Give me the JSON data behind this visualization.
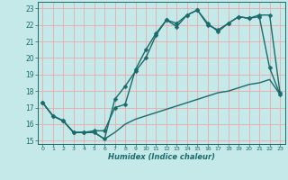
{
  "xlabel": "Humidex (Indice chaleur)",
  "xlim": [
    -0.5,
    23.5
  ],
  "ylim": [
    14.8,
    23.4
  ],
  "yticks": [
    15,
    16,
    17,
    18,
    19,
    20,
    21,
    22,
    23
  ],
  "xticks": [
    0,
    1,
    2,
    3,
    4,
    5,
    6,
    7,
    8,
    9,
    10,
    11,
    12,
    13,
    14,
    15,
    16,
    17,
    18,
    19,
    20,
    21,
    22,
    23
  ],
  "bg_color": "#c5e8e8",
  "grid_color": "#e8aaaa",
  "line_color": "#1a6b6b",
  "markersize": 2.5,
  "linewidth": 1.0,
  "line1_x": [
    0,
    1,
    2,
    3,
    4,
    5,
    6,
    7,
    8,
    9,
    10,
    11,
    12,
    13,
    14,
    15,
    16,
    17,
    18,
    19,
    20,
    21,
    22,
    23
  ],
  "line1_y": [
    17.3,
    16.5,
    16.2,
    15.5,
    15.5,
    15.5,
    15.1,
    17.5,
    18.3,
    19.2,
    20.0,
    21.4,
    22.3,
    21.9,
    22.6,
    22.9,
    22.0,
    21.7,
    22.1,
    22.5,
    22.4,
    22.5,
    19.4,
    17.8
  ],
  "line2_x": [
    0,
    1,
    2,
    3,
    4,
    5,
    6,
    7,
    8,
    9,
    10,
    11,
    12,
    13,
    14,
    15,
    16,
    17,
    18,
    19,
    20,
    21,
    22,
    23
  ],
  "line2_y": [
    17.3,
    16.5,
    16.2,
    15.5,
    15.5,
    15.6,
    15.6,
    17.0,
    17.2,
    19.3,
    20.5,
    21.5,
    22.3,
    22.1,
    22.6,
    22.9,
    22.1,
    21.6,
    22.1,
    22.5,
    22.4,
    22.6,
    22.6,
    17.9
  ],
  "line3_x": [
    0,
    1,
    2,
    3,
    4,
    5,
    6,
    7,
    8,
    9,
    10,
    11,
    12,
    13,
    14,
    15,
    16,
    17,
    18,
    19,
    20,
    21,
    22,
    23
  ],
  "line3_y": [
    17.3,
    16.5,
    16.2,
    15.5,
    15.5,
    15.5,
    15.1,
    15.5,
    16.0,
    16.3,
    16.5,
    16.7,
    16.9,
    17.1,
    17.3,
    17.5,
    17.7,
    17.9,
    18.0,
    18.2,
    18.4,
    18.5,
    18.7,
    17.8
  ]
}
